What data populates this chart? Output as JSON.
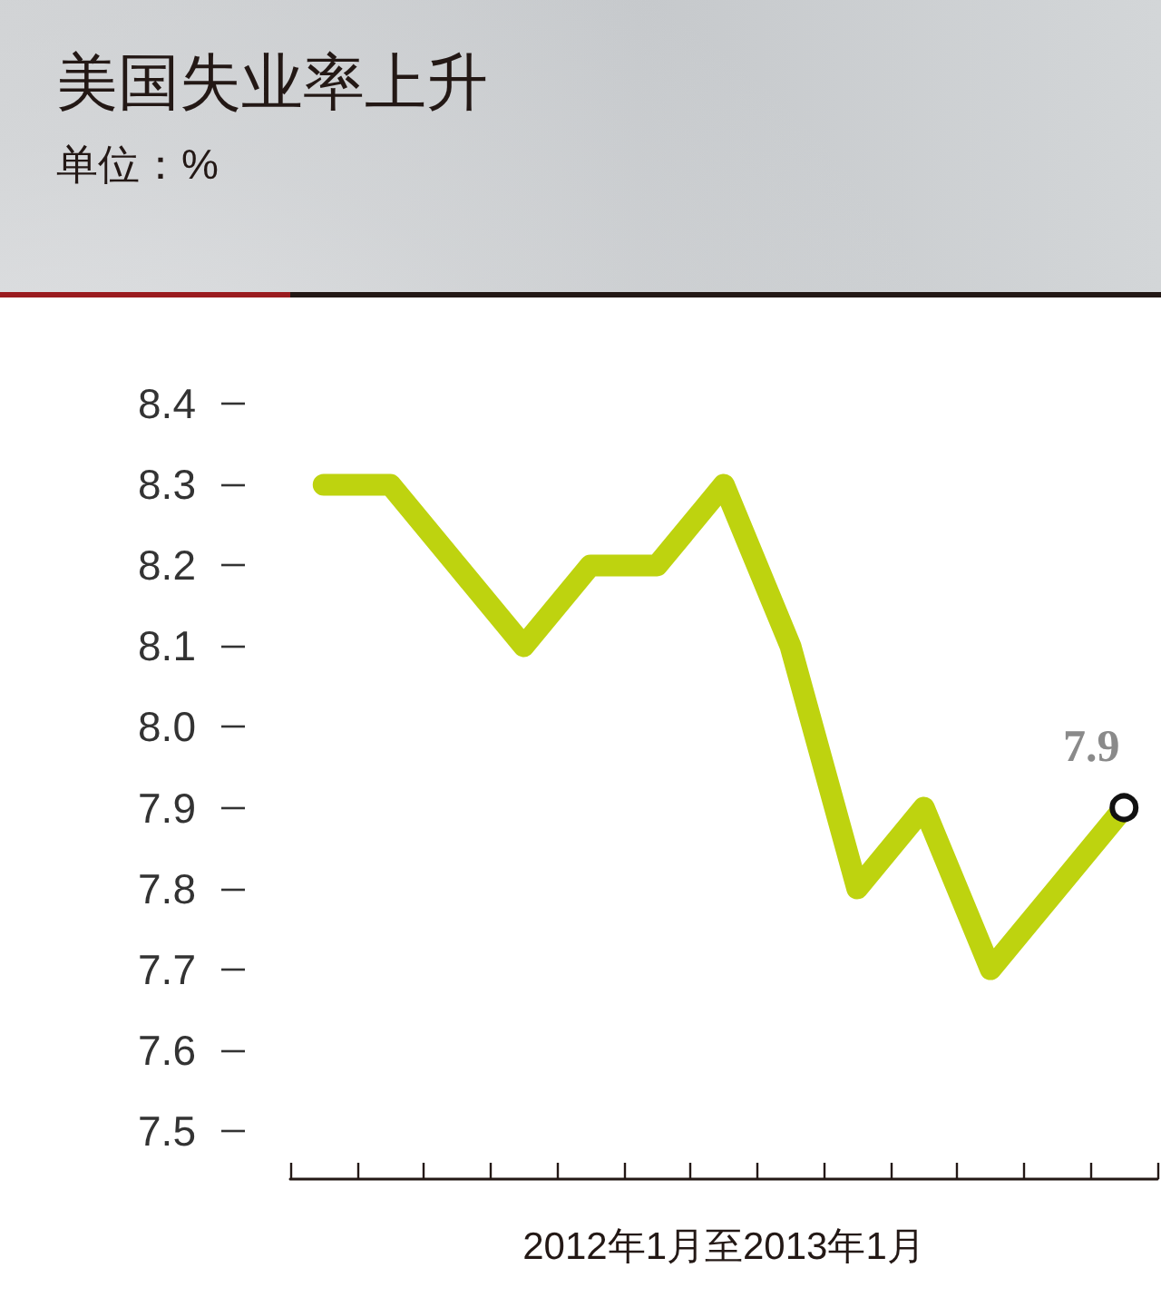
{
  "chart_data": {
    "type": "line",
    "title": "美国失业率上升",
    "subtitle": "单位：%",
    "xlabel": "2012年1月至2013年1月",
    "categories": [
      null,
      null,
      null,
      null,
      null,
      null,
      null,
      null,
      null,
      null,
      null,
      null,
      null
    ],
    "series": [
      {
        "color": "#bed30f",
        "values": [
          8.3,
          8.3,
          8.2,
          8.1,
          8.2,
          8.2,
          8.3,
          8.1,
          7.8,
          7.9,
          7.7,
          7.8,
          7.9
        ],
        "value_labels": [
          null,
          null,
          null,
          null,
          null,
          null,
          null,
          null,
          null,
          null,
          null,
          null,
          "7.9"
        ]
      }
    ],
    "ylim": [
      7.44,
      8.4
    ],
    "yticks": [
      7.5,
      7.6,
      7.7,
      7.8,
      7.9,
      {
        "value": 8,
        "label": "8.0"
      },
      8.1,
      8.2,
      8.3,
      8.4
    ],
    "tick_labels": "y",
    "line_style": "solid"
  }
}
